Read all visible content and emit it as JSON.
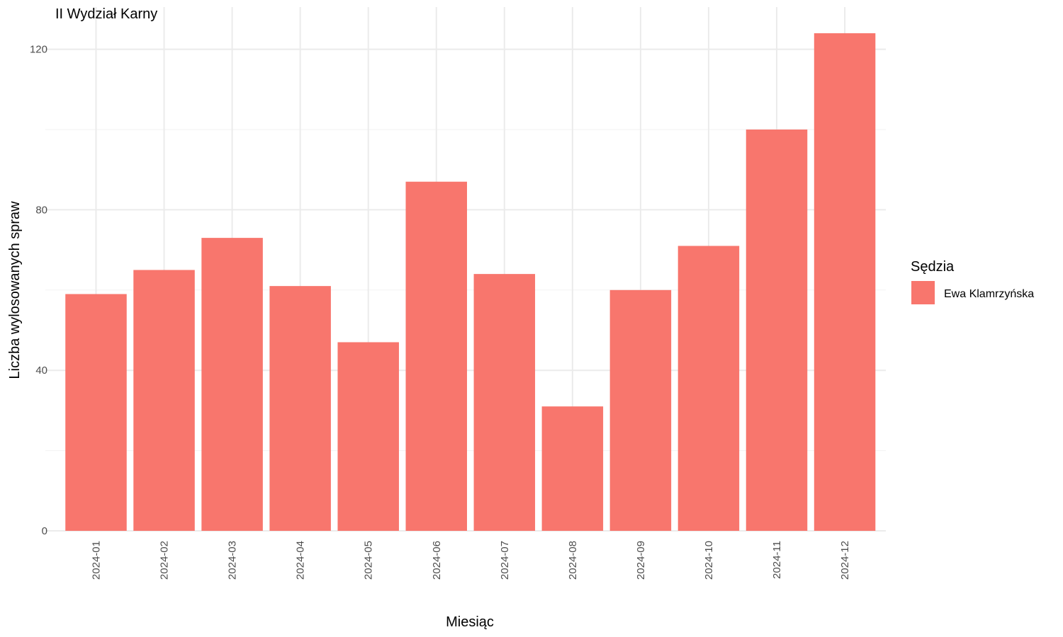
{
  "chart_data": {
    "type": "bar",
    "title": "II Wydział Karny",
    "xlabel": "Miesiąc",
    "ylabel": "Liczba wylosowanych spraw",
    "categories": [
      "2024-01",
      "2024-02",
      "2024-03",
      "2024-04",
      "2024-05",
      "2024-06",
      "2024-07",
      "2024-08",
      "2024-09",
      "2024-10",
      "2024-11",
      "2024-12"
    ],
    "series": [
      {
        "name": "Ewa Klamrzyńska",
        "color": "#F8766D",
        "values": [
          59,
          65,
          73,
          61,
          47,
          87,
          64,
          31,
          60,
          71,
          100,
          124
        ]
      }
    ],
    "ylim": [
      0,
      124
    ],
    "yticks": [
      "0",
      "40",
      "80",
      "120"
    ],
    "grid": true,
    "legend": {
      "title": "Sędzia",
      "position": "right"
    }
  }
}
